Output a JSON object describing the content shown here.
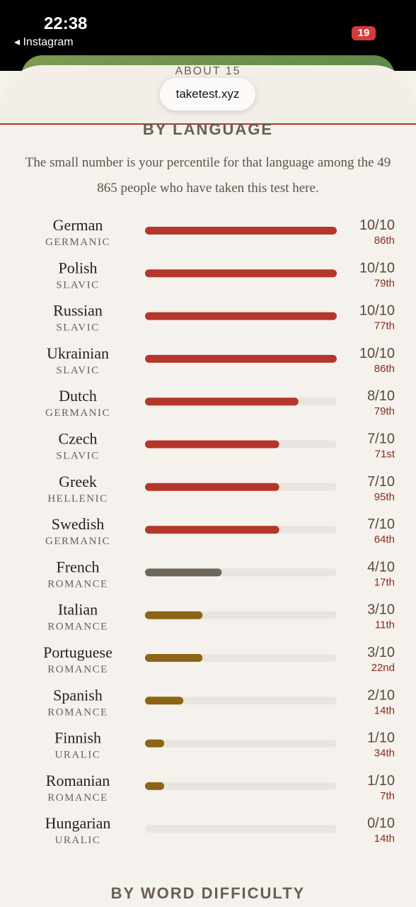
{
  "status_bar": {
    "time": "22:38",
    "back_app": "Instagram",
    "battery": "19"
  },
  "browser": {
    "url": "taketest.xyz"
  },
  "header": {
    "partial_title": "ABOUT 15",
    "section_title": "BY LANGUAGE",
    "description": "The small number is your percentile for that language among the 49 865 people who have taken this test here."
  },
  "xlim": [
    0,
    10
  ],
  "rows": [
    {
      "language": "German",
      "family": "GERMANIC",
      "score": {
        "value": 10,
        "label": "10/10"
      },
      "percentile": "86th",
      "color": "#b5362a"
    },
    {
      "language": "Polish",
      "family": "SLAVIC",
      "score": {
        "value": 10,
        "label": "10/10"
      },
      "percentile": "79th",
      "color": "#b5362a"
    },
    {
      "language": "Russian",
      "family": "SLAVIC",
      "score": {
        "value": 10,
        "label": "10/10"
      },
      "percentile": "77th",
      "color": "#b5362a"
    },
    {
      "language": "Ukrainian",
      "family": "SLAVIC",
      "score": {
        "value": 10,
        "label": "10/10"
      },
      "percentile": "86th",
      "color": "#b5362a"
    },
    {
      "language": "Dutch",
      "family": "GERMANIC",
      "score": {
        "value": 8,
        "label": "8/10"
      },
      "percentile": "79th",
      "color": "#b5362a"
    },
    {
      "language": "Czech",
      "family": "SLAVIC",
      "score": {
        "value": 7,
        "label": "7/10"
      },
      "percentile": "71st",
      "color": "#b5362a"
    },
    {
      "language": "Greek",
      "family": "HELLENIC",
      "score": {
        "value": 7,
        "label": "7/10"
      },
      "percentile": "95th",
      "color": "#b5362a"
    },
    {
      "language": "Swedish",
      "family": "GERMANIC",
      "score": {
        "value": 7,
        "label": "7/10"
      },
      "percentile": "64th",
      "color": "#b5362a"
    },
    {
      "language": "French",
      "family": "ROMANCE",
      "score": {
        "value": 4,
        "label": "4/10"
      },
      "percentile": "17th",
      "color": "#6e665c"
    },
    {
      "language": "Italian",
      "family": "ROMANCE",
      "score": {
        "value": 3,
        "label": "3/10"
      },
      "percentile": "11th",
      "color": "#8c6414"
    },
    {
      "language": "Portuguese",
      "family": "ROMANCE",
      "score": {
        "value": 3,
        "label": "3/10"
      },
      "percentile": "22nd",
      "color": "#8c6414"
    },
    {
      "language": "Spanish",
      "family": "ROMANCE",
      "score": {
        "value": 2,
        "label": "2/10"
      },
      "percentile": "14th",
      "color": "#8c6414"
    },
    {
      "language": "Finnish",
      "family": "URALIC",
      "score": {
        "value": 1,
        "label": "1/10"
      },
      "percentile": "34th",
      "color": "#8c6414"
    },
    {
      "language": "Romanian",
      "family": "ROMANCE",
      "score": {
        "value": 1,
        "label": "1/10"
      },
      "percentile": "7th",
      "color": "#8c6414"
    },
    {
      "language": "Hungarian",
      "family": "URALIC",
      "score": {
        "value": 0,
        "label": "0/10"
      },
      "percentile": "14th",
      "color": "#8c6414"
    }
  ],
  "footer": {
    "next_section": "BY WORD DIFFICULTY"
  }
}
